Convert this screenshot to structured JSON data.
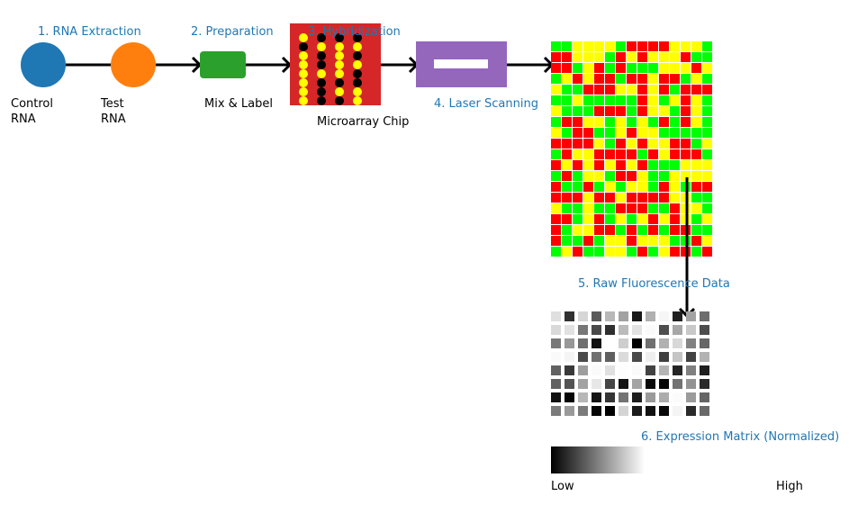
{
  "colors": {
    "step_label": "#1f77b4",
    "control": "#1f77b4",
    "test": "#ff7f0e",
    "mix": "#2ca02c",
    "chip": "#d62728",
    "scanner": "#9467bd",
    "spot_red": "#ff0000",
    "spot_green": "#00ff00",
    "spot_yellow": "#ffff00",
    "spot_black": "#000000"
  },
  "steps": {
    "rna_extraction": "1. RNA Extraction",
    "preparation": "2. Preparation",
    "hybridization": "3. Hybridization",
    "laser_scanning": "4. Laser Scanning",
    "raw_data": "5. Raw Fluorescence Data",
    "expression_matrix": "6. Expression Matrix (Normalized)"
  },
  "labels": {
    "control_1": "Control",
    "control_2": "RNA",
    "test_1": "Test",
    "test_2": "RNA",
    "mix_label": "Mix & Label",
    "chip_label": "Microarray Chip"
  },
  "colorbar": {
    "low": "Low",
    "high": "High"
  }
}
